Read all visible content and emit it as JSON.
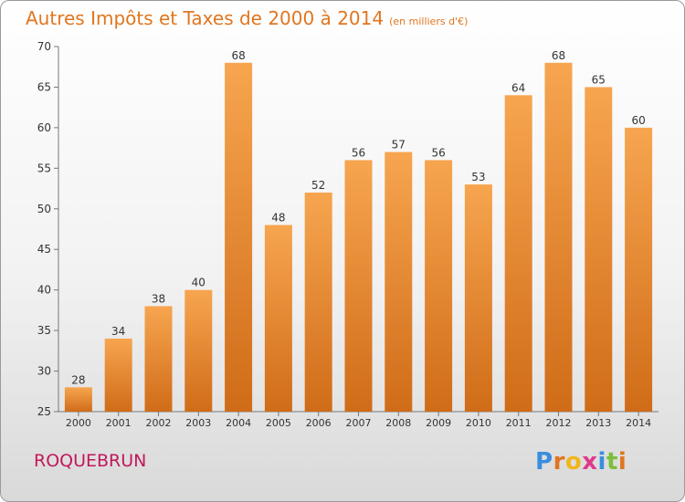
{
  "header": {
    "title": "Autres Impôts et Taxes de 2000 à 2014",
    "unit": "(en milliers d'€)"
  },
  "footer": {
    "commune": "ROQUEBRUN",
    "logo_letters": [
      "P",
      "r",
      "o",
      "x",
      "i",
      "t",
      "i"
    ]
  },
  "colors": {
    "title": "#e0761f",
    "commune": "#c2185b",
    "bar_light": "#f7a54f",
    "bar_dark": "#d06c18",
    "logo": [
      "#3a8dde",
      "#e0761f",
      "#f2b61b",
      "#e0398a",
      "#3a8dde",
      "#7cbf3a",
      "#e0761f"
    ]
  },
  "chart_data": {
    "type": "bar",
    "title": "Autres Impôts et Taxes de 2000 à 2014",
    "categories": [
      "2000",
      "2001",
      "2002",
      "2003",
      "2004",
      "2005",
      "2006",
      "2007",
      "2008",
      "2009",
      "2010",
      "2011",
      "2012",
      "2013",
      "2014"
    ],
    "values": [
      28,
      34,
      38,
      40,
      68,
      48,
      52,
      56,
      57,
      56,
      53,
      64,
      68,
      65,
      60
    ],
    "ylim": [
      25,
      70
    ],
    "yticks": [
      25,
      30,
      35,
      40,
      45,
      50,
      55,
      60,
      65,
      70
    ],
    "grid": false,
    "data_labels": true
  }
}
